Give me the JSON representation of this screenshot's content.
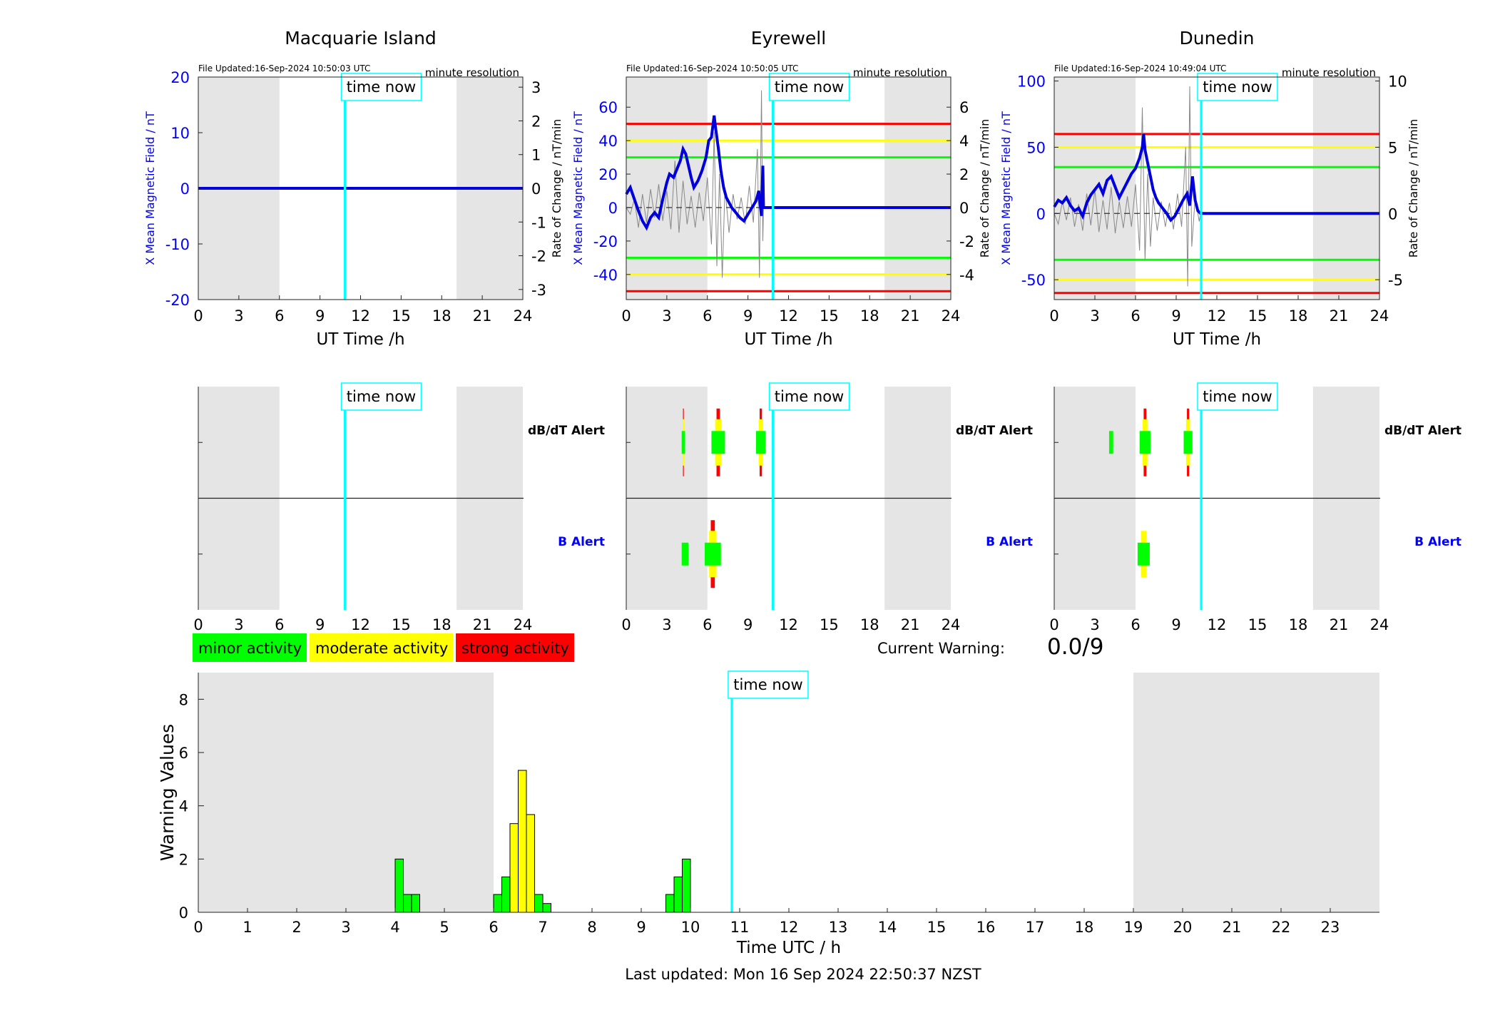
{
  "time_now_label": "time now",
  "time_now_hour": 10.84,
  "night_shading": [
    [
      0,
      6
    ],
    [
      19.1,
      24
    ]
  ],
  "stations": [
    {
      "name": "Macquarie Island",
      "file_updated": "File Updated:16-Sep-2024 10:50:03 UTC",
      "resolution": "minute resolution",
      "ylabel_left": "X Mean Magnetic Field / nT",
      "ylabel_right": "Rate of Change / nT/min",
      "xlabel": "UT Time /h",
      "ylim": [
        -20,
        20
      ],
      "yticks": [
        -20,
        -10,
        0,
        10,
        20
      ],
      "rlim": [
        -3.3,
        3.3
      ],
      "rticks": [
        -3,
        -2,
        -1,
        0,
        1,
        2,
        3
      ],
      "thresholds": [],
      "field_series": [
        [
          0,
          0
        ],
        [
          24,
          0
        ]
      ],
      "rate_series": [],
      "dbdt_alerts": [],
      "b_alerts": []
    },
    {
      "name": "Eyrewell",
      "file_updated": "File Updated:16-Sep-2024 10:50:05 UTC",
      "resolution": "minute resolution",
      "ylabel_left": "X Mean Magnetic Field / nT",
      "ylabel_right": "Rate of Change / nT/min",
      "xlabel": "UT Time /h",
      "ylim": [
        -55,
        78
      ],
      "yticks": [
        -40,
        -20,
        0,
        20,
        40,
        60
      ],
      "rlim": [
        -5.5,
        7.8
      ],
      "rticks": [
        -4,
        -2,
        0,
        2,
        4,
        6
      ],
      "thresholds": [
        {
          "value": 50,
          "color": "#ff0000"
        },
        {
          "value": 40,
          "color": "#ffff00"
        },
        {
          "value": 30,
          "color": "#00ff00"
        },
        {
          "value": -30,
          "color": "#00ff00"
        },
        {
          "value": -40,
          "color": "#ffff00"
        },
        {
          "value": -50,
          "color": "#ff0000"
        }
      ],
      "field_series": [
        [
          0,
          8
        ],
        [
          0.3,
          12
        ],
        [
          0.6,
          5
        ],
        [
          0.9,
          -2
        ],
        [
          1.2,
          -8
        ],
        [
          1.5,
          -12
        ],
        [
          1.8,
          -6
        ],
        [
          2.1,
          -3
        ],
        [
          2.4,
          -6
        ],
        [
          2.7,
          5
        ],
        [
          3.0,
          15
        ],
        [
          3.2,
          20
        ],
        [
          3.5,
          18
        ],
        [
          3.8,
          24
        ],
        [
          4.0,
          28
        ],
        [
          4.2,
          35
        ],
        [
          4.4,
          32
        ],
        [
          4.6,
          25
        ],
        [
          4.8,
          18
        ],
        [
          5.0,
          12
        ],
        [
          5.3,
          16
        ],
        [
          5.6,
          22
        ],
        [
          5.9,
          30
        ],
        [
          6.1,
          40
        ],
        [
          6.3,
          42
        ],
        [
          6.5,
          55
        ],
        [
          6.6,
          48
        ],
        [
          6.8,
          36
        ],
        [
          7.0,
          22
        ],
        [
          7.2,
          12
        ],
        [
          7.4,
          6
        ],
        [
          7.6,
          3
        ],
        [
          7.8,
          0
        ],
        [
          8.1,
          -3
        ],
        [
          8.4,
          -6
        ],
        [
          8.7,
          -8
        ],
        [
          9.0,
          -4
        ],
        [
          9.3,
          0
        ],
        [
          9.6,
          4
        ],
        [
          9.8,
          10
        ],
        [
          9.9,
          2
        ],
        [
          10.0,
          -5
        ],
        [
          10.1,
          25
        ],
        [
          10.15,
          0
        ],
        [
          24,
          0
        ]
      ],
      "rate_series": [
        [
          0,
          0
        ],
        [
          0.3,
          -0.4
        ],
        [
          0.6,
          0.5
        ],
        [
          0.9,
          -1.2
        ],
        [
          1.2,
          0.8
        ],
        [
          1.5,
          -0.9
        ],
        [
          1.8,
          1.1
        ],
        [
          2.1,
          -0.6
        ],
        [
          2.4,
          1.4
        ],
        [
          2.7,
          -0.8
        ],
        [
          3.0,
          1.0
        ],
        [
          3.3,
          -1.3
        ],
        [
          3.6,
          2.8
        ],
        [
          3.9,
          -1.5
        ],
        [
          4.2,
          1.6
        ],
        [
          4.5,
          -1.0
        ],
        [
          4.8,
          0.7
        ],
        [
          5.1,
          -1.2
        ],
        [
          5.4,
          0.9
        ],
        [
          5.7,
          -0.8
        ],
        [
          6.0,
          1.8
        ],
        [
          6.3,
          -2.2
        ],
        [
          6.5,
          4.5
        ],
        [
          6.7,
          -3.5
        ],
        [
          6.9,
          2.0
        ],
        [
          7.1,
          -4.2
        ],
        [
          7.3,
          1.2
        ],
        [
          7.6,
          -1.5
        ],
        [
          7.9,
          0.8
        ],
        [
          8.2,
          -0.7
        ],
        [
          8.5,
          0.6
        ],
        [
          8.8,
          -1.0
        ],
        [
          9.1,
          1.3
        ],
        [
          9.4,
          -0.9
        ],
        [
          9.7,
          3.5
        ],
        [
          9.85,
          -4.2
        ],
        [
          10.0,
          7.0
        ],
        [
          10.1,
          -2.0
        ],
        [
          10.15,
          0
        ]
      ],
      "dbdt_alerts": [
        {
          "start": 4.1,
          "end": 4.35,
          "level": "strong"
        },
        {
          "start": 6.3,
          "end": 7.3,
          "level": "strong"
        },
        {
          "start": 9.6,
          "end": 10.3,
          "level": "strong"
        }
      ],
      "b_alerts": [
        {
          "start": 4.1,
          "end": 4.6,
          "level": "minor"
        },
        {
          "start": 5.8,
          "end": 7.0,
          "level": "strong"
        }
      ]
    },
    {
      "name": "Dunedin",
      "file_updated": "File Updated:16-Sep-2024 10:49:04 UTC",
      "resolution": "minute resolution",
      "ylabel_left": "X Mean Magnetic Field / nT",
      "ylabel_right": "Rate of Change / nT/min",
      "xlabel": "UT Time /h",
      "ylim": [
        -65,
        103
      ],
      "yticks": [
        -50,
        0,
        50,
        100
      ],
      "rlim": [
        -6.5,
        10.3
      ],
      "rticks": [
        -5,
        0,
        5,
        10
      ],
      "thresholds": [
        {
          "value": 60,
          "color": "#ff0000"
        },
        {
          "value": 50,
          "color": "#ffff00"
        },
        {
          "value": 35,
          "color": "#00ff00"
        },
        {
          "value": -35,
          "color": "#00ff00"
        },
        {
          "value": -50,
          "color": "#ffff00"
        },
        {
          "value": -60,
          "color": "#ff0000"
        }
      ],
      "field_series": [
        [
          0,
          5
        ],
        [
          0.3,
          10
        ],
        [
          0.6,
          8
        ],
        [
          0.9,
          12
        ],
        [
          1.2,
          6
        ],
        [
          1.5,
          2
        ],
        [
          1.8,
          4
        ],
        [
          2.1,
          -2
        ],
        [
          2.4,
          8
        ],
        [
          2.7,
          14
        ],
        [
          3.0,
          18
        ],
        [
          3.3,
          22
        ],
        [
          3.6,
          15
        ],
        [
          3.9,
          25
        ],
        [
          4.2,
          28
        ],
        [
          4.5,
          20
        ],
        [
          4.8,
          12
        ],
        [
          5.1,
          18
        ],
        [
          5.4,
          24
        ],
        [
          5.7,
          30
        ],
        [
          6.0,
          34
        ],
        [
          6.3,
          42
        ],
        [
          6.5,
          50
        ],
        [
          6.6,
          60
        ],
        [
          6.7,
          48
        ],
        [
          6.9,
          38
        ],
        [
          7.1,
          28
        ],
        [
          7.3,
          18
        ],
        [
          7.5,
          12
        ],
        [
          7.7,
          8
        ],
        [
          8.0,
          4
        ],
        [
          8.3,
          0
        ],
        [
          8.6,
          -5
        ],
        [
          8.9,
          -2
        ],
        [
          9.2,
          4
        ],
        [
          9.5,
          10
        ],
        [
          9.8,
          15
        ],
        [
          10.0,
          6
        ],
        [
          10.2,
          28
        ],
        [
          10.4,
          10
        ],
        [
          10.6,
          2
        ],
        [
          10.8,
          0
        ],
        [
          24,
          0
        ]
      ],
      "rate_series": [
        [
          0,
          0
        ],
        [
          0.3,
          -0.8
        ],
        [
          0.6,
          0.9
        ],
        [
          0.9,
          -0.5
        ],
        [
          1.2,
          1.2
        ],
        [
          1.5,
          -1.0
        ],
        [
          1.8,
          0.7
        ],
        [
          2.1,
          -1.3
        ],
        [
          2.4,
          1.5
        ],
        [
          2.7,
          -0.9
        ],
        [
          3.0,
          1.8
        ],
        [
          3.3,
          -1.4
        ],
        [
          3.6,
          1.0
        ],
        [
          3.9,
          -1.2
        ],
        [
          4.2,
          2.0
        ],
        [
          4.5,
          -1.5
        ],
        [
          4.8,
          0.9
        ],
        [
          5.1,
          -1.1
        ],
        [
          5.4,
          1.3
        ],
        [
          5.7,
          -1.0
        ],
        [
          6.0,
          2.2
        ],
        [
          6.3,
          -2.8
        ],
        [
          6.5,
          8.0
        ],
        [
          6.7,
          -3.5
        ],
        [
          6.9,
          3.0
        ],
        [
          7.1,
          -2.5
        ],
        [
          7.3,
          1.2
        ],
        [
          7.6,
          -1.3
        ],
        [
          7.9,
          0.9
        ],
        [
          8.2,
          -1.0
        ],
        [
          8.5,
          0.8
        ],
        [
          8.8,
          -1.2
        ],
        [
          9.1,
          1.5
        ],
        [
          9.4,
          -1.0
        ],
        [
          9.7,
          5.0
        ],
        [
          9.85,
          -5.5
        ],
        [
          10.0,
          9.6
        ],
        [
          10.15,
          -2.5
        ],
        [
          10.4,
          1.2
        ],
        [
          10.7,
          -0.6
        ],
        [
          10.8,
          0
        ]
      ],
      "dbdt_alerts": [
        {
          "start": 4.05,
          "end": 4.35,
          "level": "minor"
        },
        {
          "start": 6.3,
          "end": 7.1,
          "level": "strong"
        },
        {
          "start": 9.55,
          "end": 10.2,
          "level": "strong"
        }
      ],
      "b_alerts": [
        {
          "start": 6.15,
          "end": 7.05,
          "level": "moderate"
        }
      ]
    }
  ],
  "alert_labels": {
    "dbdt": "dB/dT Alert",
    "b": "B Alert"
  },
  "alert_xticks": [
    0,
    3,
    6,
    9,
    12,
    15,
    18,
    21,
    24
  ],
  "legend": [
    {
      "label": "minor activity",
      "color": "#00ff00"
    },
    {
      "label": "moderate activity",
      "color": "#ffff00"
    },
    {
      "label": "strong activity",
      "color": "#ff0000"
    }
  ],
  "current_warning": {
    "label": "Current Warning:",
    "value": "0.0/9"
  },
  "chart_data": {
    "type": "bar",
    "ylabel": "Warning Values",
    "xlabel": "Time UTC / h",
    "xlim": [
      0,
      24
    ],
    "ylim": [
      0,
      9
    ],
    "yticks": [
      0,
      2,
      4,
      6,
      8
    ],
    "xticks": [
      0,
      1,
      2,
      3,
      4,
      5,
      6,
      7,
      8,
      9,
      10,
      11,
      12,
      13,
      14,
      15,
      16,
      17,
      18,
      19,
      20,
      21,
      22,
      23
    ],
    "bin_width_h": 0.1667,
    "bars": [
      {
        "x": 4.0,
        "value": 2.0,
        "color": "#00ff00"
      },
      {
        "x": 4.1667,
        "value": 0.67,
        "color": "#00ff00"
      },
      {
        "x": 4.3333,
        "value": 0.67,
        "color": "#00ff00"
      },
      {
        "x": 6.0,
        "value": 0.67,
        "color": "#00ff00"
      },
      {
        "x": 6.1667,
        "value": 1.33,
        "color": "#00ff00"
      },
      {
        "x": 6.3333,
        "value": 3.33,
        "color": "#ffff00"
      },
      {
        "x": 6.5,
        "value": 5.33,
        "color": "#ffff00"
      },
      {
        "x": 6.6667,
        "value": 3.67,
        "color": "#ffff00"
      },
      {
        "x": 6.8333,
        "value": 0.67,
        "color": "#00ff00"
      },
      {
        "x": 7.0,
        "value": 0.33,
        "color": "#00ff00"
      },
      {
        "x": 9.5,
        "value": 0.67,
        "color": "#00ff00"
      },
      {
        "x": 9.6667,
        "value": 1.33,
        "color": "#00ff00"
      },
      {
        "x": 9.8333,
        "value": 2.0,
        "color": "#00ff00"
      }
    ],
    "night_shading": [
      [
        0,
        6
      ],
      [
        19.0,
        24
      ]
    ]
  },
  "last_updated": "Last updated: Mon 16 Sep 2024 22:50:37 NZST"
}
